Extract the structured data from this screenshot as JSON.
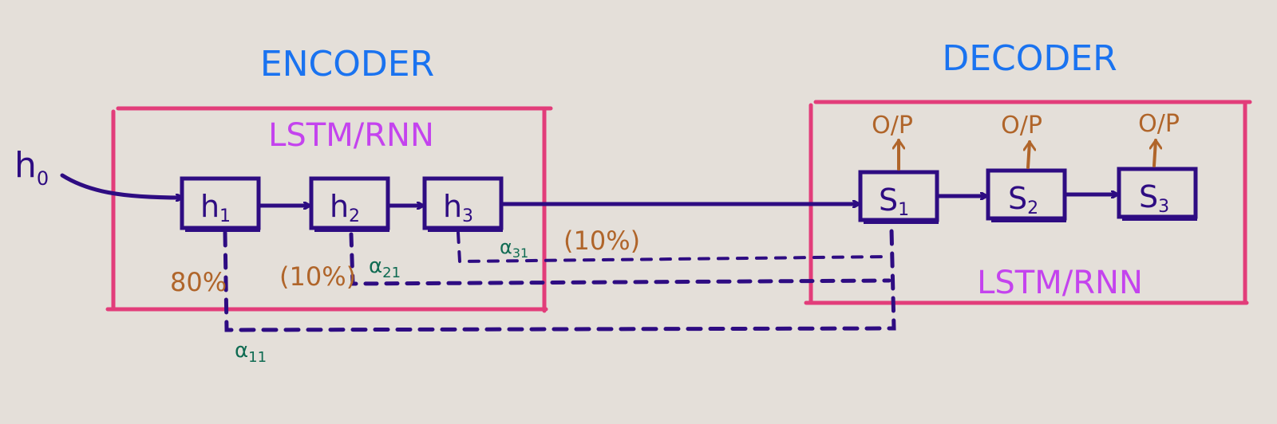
{
  "encoder": {
    "title": "ENCODER",
    "box_label": "LSTM/RNN",
    "initial_state": "h",
    "initial_state_sub": "0",
    "cells": [
      {
        "main": "h",
        "sub": "1"
      },
      {
        "main": "h",
        "sub": "2"
      },
      {
        "main": "h",
        "sub": "3"
      }
    ]
  },
  "decoder": {
    "title": "DECODER",
    "box_label": "LSTM/RNN",
    "cells": [
      {
        "main": "S",
        "sub": "1",
        "output": "O/P"
      },
      {
        "main": "S",
        "sub": "2",
        "output": "O/P"
      },
      {
        "main": "S",
        "sub": "3",
        "output": "O/P"
      }
    ]
  },
  "attention": {
    "weights": [
      "80%",
      "(10%)",
      "(10%)"
    ],
    "alphas": [
      {
        "main": "α",
        "sub": "11"
      },
      {
        "main": "α",
        "sub": "21"
      },
      {
        "main": "α",
        "sub": "31"
      }
    ]
  },
  "colors": {
    "background": "#e4dfd9",
    "title": "#1a73f0",
    "box_border": "#e23d7a",
    "box_label": "#c443ee",
    "cell": "#2e0c82",
    "output": "#b0652a",
    "weight": "#b0652a",
    "alpha": "#0f6b52"
  }
}
